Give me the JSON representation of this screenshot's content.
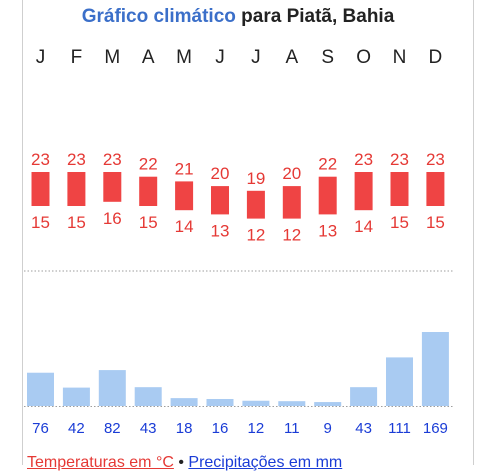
{
  "title": {
    "link_text": "Gráfico climático",
    "rest_text": "para Piatã, Bahia"
  },
  "legend": {
    "temperature": "Temperaturas em °C",
    "separator": "•",
    "precipitation": "Precipitações em mm"
  },
  "colors": {
    "temp_bar": "#ef4444",
    "temp_text": "#e53935",
    "precip_bar": "#a9cbf2",
    "precip_text": "#1a3cd6",
    "link": "#3b6fc9"
  },
  "chart_data": {
    "type": "bar",
    "categories": [
      "J",
      "F",
      "M",
      "A",
      "M",
      "J",
      "J",
      "A",
      "S",
      "O",
      "N",
      "D"
    ],
    "series": [
      {
        "name": "Temperaturas em °C",
        "kind": "range",
        "max": [
          23,
          23,
          23,
          22,
          21,
          20,
          19,
          20,
          22,
          23,
          23,
          23
        ],
        "min": [
          15,
          15,
          16,
          15,
          14,
          13,
          12,
          12,
          13,
          14,
          15,
          15
        ]
      },
      {
        "name": "Precipitações em mm",
        "kind": "bar",
        "values": [
          76,
          42,
          82,
          43,
          18,
          16,
          12,
          11,
          9,
          43,
          111,
          169
        ]
      }
    ],
    "grid": false,
    "legend_position": "bottom"
  }
}
